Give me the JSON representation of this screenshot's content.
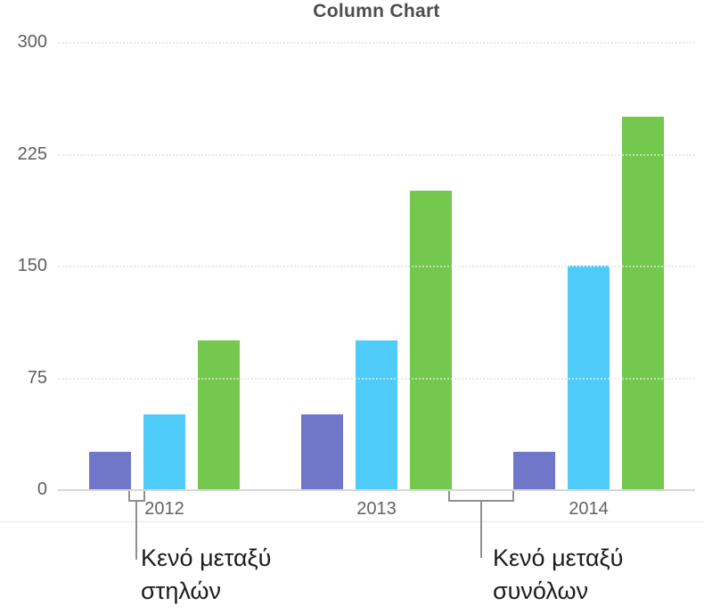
{
  "chart_data": {
    "type": "bar",
    "title": "Column Chart",
    "categories": [
      "2012",
      "2013",
      "2014"
    ],
    "series": [
      {
        "name": "purple",
        "color": "#7077C8",
        "values": [
          25,
          50,
          25
        ]
      },
      {
        "name": "blue",
        "color": "#4FCBF9",
        "values": [
          50,
          100,
          150
        ]
      },
      {
        "name": "green",
        "color": "#73C84D",
        "values": [
          100,
          200,
          250
        ]
      }
    ],
    "xlabel": "",
    "ylabel": "",
    "ylim": [
      0,
      300
    ],
    "yticks": [
      0,
      75,
      150,
      225,
      300
    ],
    "grid": "horizontal-dotted",
    "legend": "none"
  },
  "annotations": {
    "column_gap": {
      "line1": "Κενό μεταξύ",
      "line2": "στηλών"
    },
    "set_gap": {
      "line1": "Κενό μεταξύ",
      "line2": "συνόλων"
    }
  },
  "colors": {
    "series_purple": "#7077C8",
    "series_blue": "#4FCBF9",
    "series_green": "#73C84D",
    "gridline": "#C9C9C9",
    "axis_baseline": "#D7D7D7",
    "title_text": "#4D4D4F",
    "tick_text": "#5E5E60",
    "annotation_text": "#1D1D1F",
    "bracket": "#8F8F8F",
    "background": "#FFFFFF"
  }
}
